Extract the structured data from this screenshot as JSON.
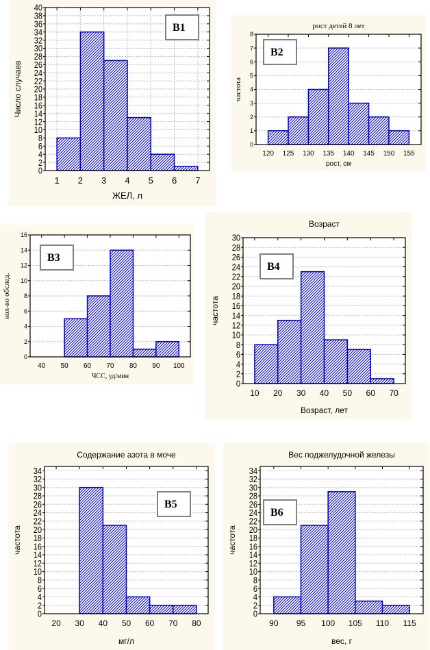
{
  "style": {
    "panel_background": "#fdf8ec",
    "bar_stroke": "#0000cc",
    "bar_hatch": "#0000cc",
    "grid_color": "#b8b8b8",
    "label_box_border": "#808080"
  },
  "chart_data": [
    {
      "id": "B1",
      "type": "bar",
      "label": "B1",
      "title": "",
      "xlabel": "ЖЕЛ, л",
      "ylabel": "Число случаев",
      "bin_edges": [
        1,
        2,
        3,
        4,
        5,
        6,
        7
      ],
      "values": [
        8,
        34,
        27,
        13,
        4,
        1
      ],
      "xlim": [
        0.5,
        7.5
      ],
      "ylim": [
        0,
        40
      ],
      "yticks": [
        0,
        2,
        4,
        6,
        8,
        10,
        12,
        14,
        16,
        18,
        20,
        22,
        24,
        26,
        28,
        30,
        32,
        34,
        36,
        38,
        40
      ],
      "xticks": [
        1,
        2,
        3,
        4,
        5,
        6,
        7
      ],
      "grid": true,
      "label_box_position": "top-right"
    },
    {
      "id": "B2",
      "type": "bar",
      "label": "B2",
      "title": "рост детей 8 лет",
      "xlabel": "рост, см",
      "ylabel": "частота",
      "bin_edges": [
        120,
        125,
        130,
        135,
        140,
        145,
        150,
        155
      ],
      "values": [
        1,
        2,
        4,
        7,
        3,
        2,
        1
      ],
      "xlim": [
        117,
        158
      ],
      "ylim": [
        0,
        8
      ],
      "yticks": [
        0,
        1,
        2,
        3,
        4,
        5,
        6,
        7,
        8
      ],
      "xticks": [
        120,
        125,
        130,
        135,
        140,
        145,
        150,
        155
      ],
      "grid": true,
      "label_box_position": "top-left"
    },
    {
      "id": "B3",
      "type": "bar",
      "label": "B3",
      "title": "",
      "xlabel": "ЧСС, уд/мин",
      "ylabel": "кол-во обслед.",
      "bin_edges": [
        40,
        50,
        60,
        70,
        80,
        90,
        100
      ],
      "values": [
        0,
        5,
        8,
        14,
        1,
        2
      ],
      "xlim": [
        35,
        105
      ],
      "ylim": [
        0,
        16
      ],
      "yticks": [
        0,
        2,
        4,
        6,
        8,
        10,
        12,
        14,
        16
      ],
      "xticks": [
        40,
        50,
        60,
        70,
        80,
        90,
        100
      ],
      "grid": true,
      "label_box_position": "top-left"
    },
    {
      "id": "B4",
      "type": "bar",
      "label": "B4",
      "title": "Возраст",
      "xlabel": "Возраст, лет",
      "ylabel": "частота",
      "bin_edges": [
        10,
        20,
        30,
        40,
        50,
        60,
        70
      ],
      "values": [
        8,
        13,
        23,
        9,
        7,
        1
      ],
      "xlim": [
        5,
        75
      ],
      "ylim": [
        0,
        30
      ],
      "yticks": [
        0,
        2,
        4,
        6,
        8,
        10,
        12,
        14,
        16,
        18,
        20,
        22,
        24,
        26,
        28,
        30
      ],
      "xticks": [
        10,
        20,
        30,
        40,
        50,
        60,
        70
      ],
      "grid": true,
      "label_box_position": "top-left"
    },
    {
      "id": "B5",
      "type": "bar",
      "label": "B5",
      "title": "Содержание азота в моче",
      "xlabel": "мг/л",
      "ylabel": "частота",
      "bin_edges": [
        20,
        30,
        40,
        50,
        60,
        70,
        80
      ],
      "values": [
        0,
        30,
        21,
        4,
        2,
        2
      ],
      "xlim": [
        15,
        85
      ],
      "ylim": [
        0,
        35
      ],
      "yticks": [
        0,
        2,
        4,
        6,
        8,
        10,
        12,
        14,
        16,
        18,
        20,
        22,
        24,
        26,
        28,
        30,
        32,
        34
      ],
      "xticks": [
        20,
        30,
        40,
        50,
        60,
        70,
        80
      ],
      "grid": true,
      "label_box_position": "top-right"
    },
    {
      "id": "B6",
      "type": "bar",
      "label": "B6",
      "title": "Вес поджелудочной железы",
      "xlabel": "вес, г",
      "ylabel": "частота",
      "bin_edges": [
        90,
        95,
        100,
        105,
        110,
        115
      ],
      "values": [
        4,
        21,
        29,
        3,
        2
      ],
      "xlim": [
        87.5,
        117.5
      ],
      "ylim": [
        0,
        35
      ],
      "yticks": [
        0,
        2,
        4,
        6,
        8,
        10,
        12,
        14,
        16,
        18,
        20,
        22,
        24,
        26,
        28,
        30,
        32,
        34
      ],
      "xticks": [
        90,
        95,
        100,
        105,
        110,
        115
      ],
      "grid": true,
      "label_box_position": "top-left"
    }
  ]
}
